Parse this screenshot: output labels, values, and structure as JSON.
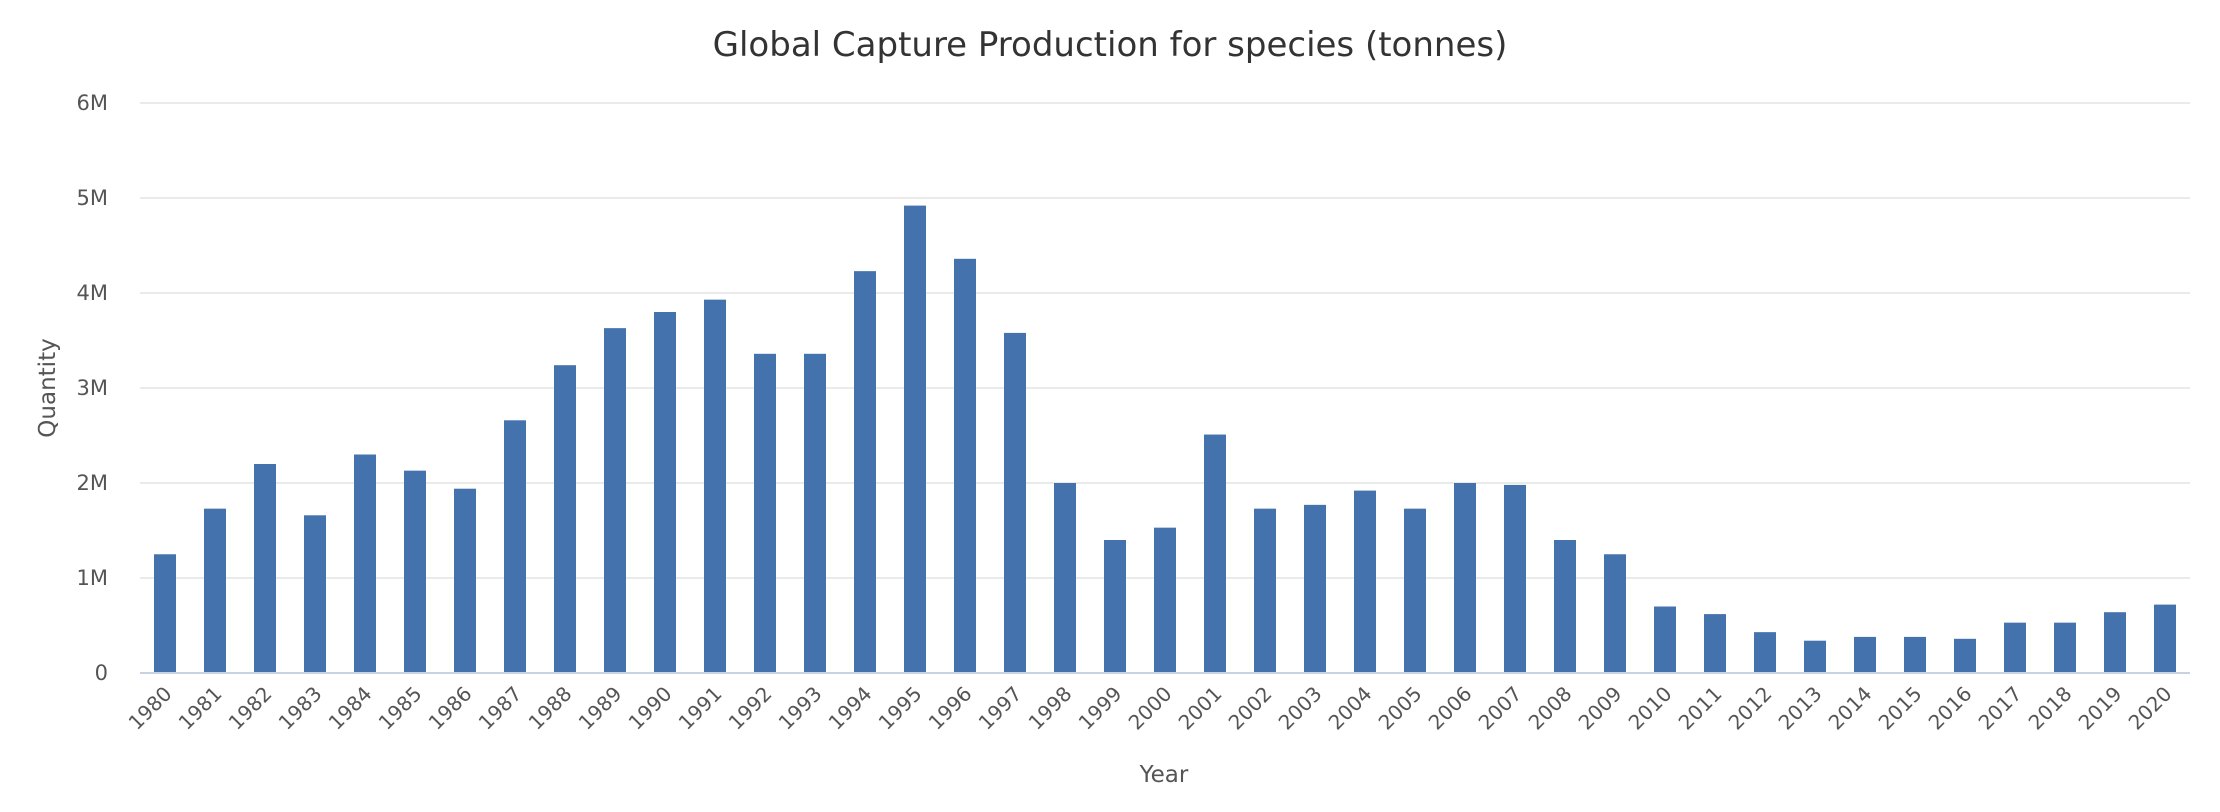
{
  "chart_data": {
    "type": "bar",
    "title": "Global Capture Production for species (tonnes)",
    "xlabel": "Year",
    "ylabel": "Quantity",
    "ylim": [
      0,
      6000000
    ],
    "yticks": [
      0,
      1000000,
      2000000,
      3000000,
      4000000,
      5000000,
      6000000
    ],
    "ytick_labels": [
      "0",
      "1M",
      "2M",
      "3M",
      "4M",
      "5M",
      "6M"
    ],
    "grid": true,
    "bar_color": "#4472ad",
    "categories": [
      "1980",
      "1981",
      "1982",
      "1983",
      "1984",
      "1985",
      "1986",
      "1987",
      "1988",
      "1989",
      "1990",
      "1991",
      "1992",
      "1993",
      "1994",
      "1995",
      "1996",
      "1997",
      "1998",
      "1999",
      "2000",
      "2001",
      "2002",
      "2003",
      "2004",
      "2005",
      "2006",
      "2007",
      "2008",
      "2009",
      "2010",
      "2011",
      "2012",
      "2013",
      "2014",
      "2015",
      "2016",
      "2017",
      "2018",
      "2019",
      "2020"
    ],
    "values": [
      1250000,
      1730000,
      2200000,
      1660000,
      2300000,
      2130000,
      1940000,
      2660000,
      3240000,
      3630000,
      3800000,
      3930000,
      3360000,
      3360000,
      4230000,
      4920000,
      4360000,
      3580000,
      2000000,
      1400000,
      1530000,
      2510000,
      1730000,
      1770000,
      1920000,
      1730000,
      2000000,
      1980000,
      1400000,
      1250000,
      700000,
      620000,
      430000,
      340000,
      380000,
      380000,
      360000,
      530000,
      530000,
      640000,
      720000
    ]
  }
}
